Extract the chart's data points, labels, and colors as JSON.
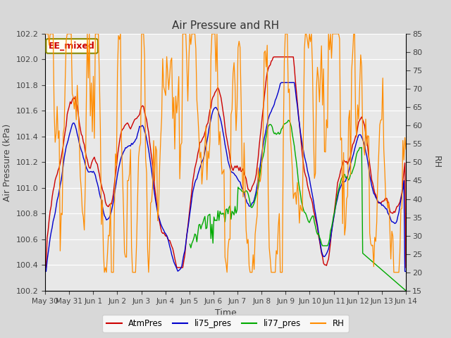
{
  "title": "Air Pressure and RH",
  "xlabel": "Time",
  "ylabel_left": "Air Pressure (kPa)",
  "ylabel_right": "RH",
  "annotation": "EE_mixed",
  "ylim_left": [
    100.2,
    102.2
  ],
  "ylim_right": [
    15,
    85
  ],
  "yticks_left": [
    100.2,
    100.4,
    100.6,
    100.8,
    101.0,
    101.2,
    101.4,
    101.6,
    101.8,
    102.0,
    102.2
  ],
  "yticks_right": [
    15,
    20,
    25,
    30,
    35,
    40,
    45,
    50,
    55,
    60,
    65,
    70,
    75,
    80,
    85
  ],
  "xtick_labels": [
    "May 30",
    "May 31",
    "Jun 1",
    "Jun 2",
    "Jun 3",
    "Jun 4",
    "Jun 5",
    "Jun 6",
    "Jun 7",
    "Jun 8",
    "Jun 9",
    "Jun 10",
    "Jun 11",
    "Jun 12",
    "Jun 13",
    "Jun 14"
  ],
  "legend_labels": [
    "AtmPres",
    "li75_pres",
    "li77_pres",
    "RH"
  ],
  "line_colors": [
    "#cc0000",
    "#0000cc",
    "#00aa00",
    "#ff8c00"
  ],
  "fig_bg": "#d8d8d8",
  "plot_bg": "#e8e8e8",
  "title_fontsize": 11,
  "label_fontsize": 9,
  "tick_fontsize": 8,
  "annot_facecolor": "#fffff0",
  "annot_edgecolor": "#888800",
  "annot_textcolor": "#cc0000"
}
